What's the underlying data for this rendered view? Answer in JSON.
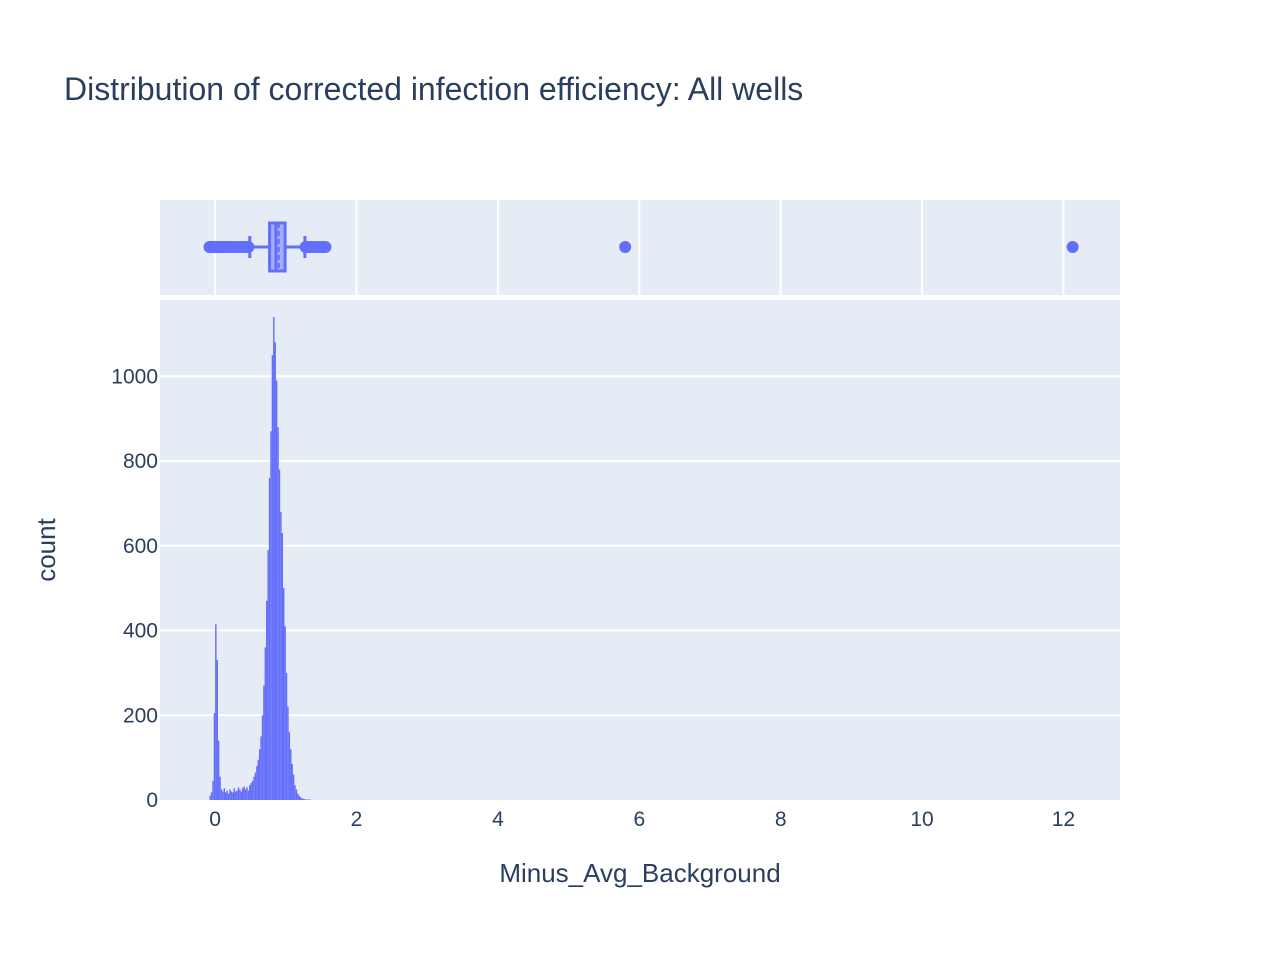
{
  "chart_data": {
    "type": "histogram",
    "title": "Distribution of corrected infection efficiency: All wells",
    "xlabel": "Minus_Avg_Background",
    "ylabel": "count",
    "xlim": [
      -0.78,
      12.8
    ],
    "ylim": [
      0,
      1180
    ],
    "x_ticks": [
      0,
      2,
      4,
      6,
      8,
      10,
      12
    ],
    "y_ticks": [
      0,
      200,
      400,
      600,
      800,
      1000
    ],
    "grid": true,
    "colors": {
      "bar": "#636efa",
      "plot_bg": "#e5ecf6",
      "grid": "#ffffff",
      "text": "#2a3f5f"
    },
    "histogram": {
      "bin_width": 0.02,
      "bins": [
        {
          "x0": -0.08,
          "count": 10
        },
        {
          "x0": -0.06,
          "count": 18
        },
        {
          "x0": -0.04,
          "count": 45
        },
        {
          "x0": -0.02,
          "count": 205
        },
        {
          "x0": 0.0,
          "count": 415
        },
        {
          "x0": 0.02,
          "count": 330
        },
        {
          "x0": 0.04,
          "count": 140
        },
        {
          "x0": 0.06,
          "count": 55
        },
        {
          "x0": 0.08,
          "count": 25
        },
        {
          "x0": 0.1,
          "count": 20
        },
        {
          "x0": 0.12,
          "count": 28
        },
        {
          "x0": 0.14,
          "count": 18
        },
        {
          "x0": 0.16,
          "count": 22
        },
        {
          "x0": 0.18,
          "count": 15
        },
        {
          "x0": 0.2,
          "count": 25
        },
        {
          "x0": 0.22,
          "count": 20
        },
        {
          "x0": 0.24,
          "count": 18
        },
        {
          "x0": 0.26,
          "count": 28
        },
        {
          "x0": 0.28,
          "count": 20
        },
        {
          "x0": 0.3,
          "count": 22
        },
        {
          "x0": 0.32,
          "count": 30
        },
        {
          "x0": 0.34,
          "count": 25
        },
        {
          "x0": 0.36,
          "count": 20
        },
        {
          "x0": 0.38,
          "count": 28
        },
        {
          "x0": 0.4,
          "count": 32
        },
        {
          "x0": 0.42,
          "count": 25
        },
        {
          "x0": 0.44,
          "count": 30
        },
        {
          "x0": 0.46,
          "count": 22
        },
        {
          "x0": 0.48,
          "count": 35
        },
        {
          "x0": 0.5,
          "count": 40
        },
        {
          "x0": 0.52,
          "count": 45
        },
        {
          "x0": 0.54,
          "count": 55
        },
        {
          "x0": 0.56,
          "count": 65
        },
        {
          "x0": 0.58,
          "count": 80
        },
        {
          "x0": 0.6,
          "count": 95
        },
        {
          "x0": 0.62,
          "count": 120
        },
        {
          "x0": 0.64,
          "count": 150
        },
        {
          "x0": 0.66,
          "count": 200
        },
        {
          "x0": 0.68,
          "count": 270
        },
        {
          "x0": 0.7,
          "count": 360
        },
        {
          "x0": 0.72,
          "count": 470
        },
        {
          "x0": 0.74,
          "count": 590
        },
        {
          "x0": 0.76,
          "count": 760
        },
        {
          "x0": 0.78,
          "count": 870
        },
        {
          "x0": 0.8,
          "count": 1050
        },
        {
          "x0": 0.82,
          "count": 1140
        },
        {
          "x0": 0.84,
          "count": 1080
        },
        {
          "x0": 0.86,
          "count": 990
        },
        {
          "x0": 0.88,
          "count": 880
        },
        {
          "x0": 0.9,
          "count": 780
        },
        {
          "x0": 0.92,
          "count": 680
        },
        {
          "x0": 0.94,
          "count": 630
        },
        {
          "x0": 0.96,
          "count": 500
        },
        {
          "x0": 0.98,
          "count": 410
        },
        {
          "x0": 1.0,
          "count": 300
        },
        {
          "x0": 1.02,
          "count": 220
        },
        {
          "x0": 1.04,
          "count": 160
        },
        {
          "x0": 1.06,
          "count": 120
        },
        {
          "x0": 1.08,
          "count": 85
        },
        {
          "x0": 1.1,
          "count": 60
        },
        {
          "x0": 1.12,
          "count": 35
        },
        {
          "x0": 1.14,
          "count": 25
        },
        {
          "x0": 1.16,
          "count": 15
        },
        {
          "x0": 1.18,
          "count": 10
        },
        {
          "x0": 1.2,
          "count": 6
        },
        {
          "x0": 1.22,
          "count": 4
        },
        {
          "x0": 1.24,
          "count": 3
        },
        {
          "x0": 1.26,
          "count": 2
        },
        {
          "x0": 1.28,
          "count": 1
        },
        {
          "x0": 1.3,
          "count": 1
        },
        {
          "x0": 1.32,
          "count": 1
        },
        {
          "x0": 1.34,
          "count": 1
        }
      ]
    },
    "box": {
      "q1": 0.77,
      "median": 0.86,
      "q3": 0.99,
      "mean": 0.9,
      "lower_fence": 0.49,
      "upper_fence": 1.27,
      "outliers": [
        -0.08,
        -0.07,
        -0.06,
        -0.05,
        -0.04,
        -0.03,
        -0.02,
        -0.01,
        0.0,
        0.01,
        0.02,
        0.03,
        0.05,
        0.07,
        0.1,
        0.13,
        0.16,
        0.2,
        0.24,
        0.28,
        0.32,
        0.36,
        0.4,
        0.44,
        0.47,
        1.28,
        1.31,
        1.34,
        1.38,
        1.42,
        1.46,
        1.5,
        1.53,
        1.56,
        5.8,
        12.13
      ]
    }
  }
}
